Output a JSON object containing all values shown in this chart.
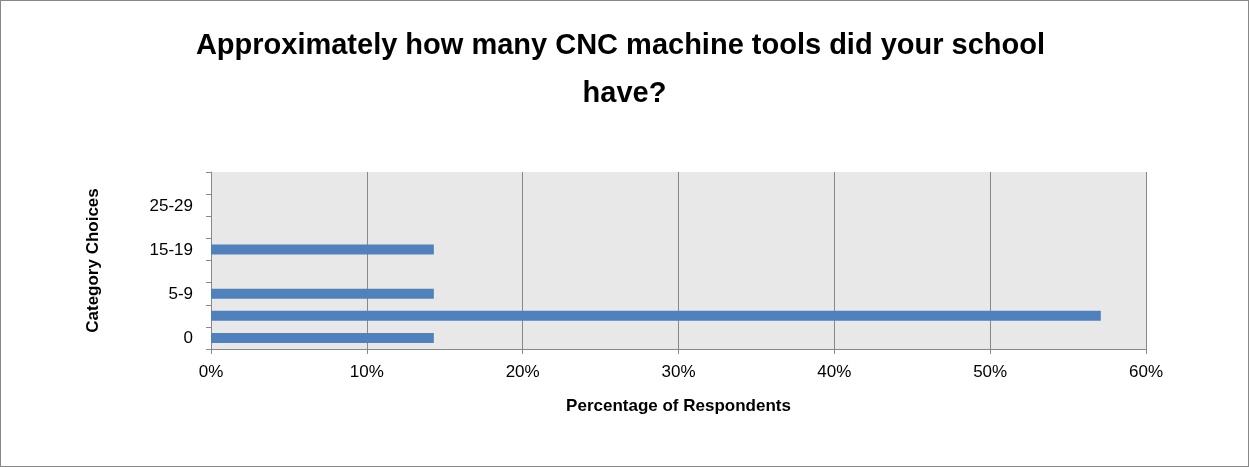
{
  "chart_data": {
    "type": "bar",
    "orientation": "horizontal",
    "title": "Approximately how many CNC machine tools did your school have?",
    "xlabel": "Percentage of Respondents",
    "ylabel": "Category Choices",
    "categories": [
      null,
      "25-29",
      null,
      "15-19",
      null,
      "5-9",
      null,
      "0"
    ],
    "values": [
      0,
      0,
      0,
      14.3,
      0,
      14.3,
      57.1,
      14.3
    ],
    "color": "#4f81bd",
    "xlim": [
      0,
      60
    ],
    "xticks": [
      {
        "value": 0,
        "label": "0%"
      },
      {
        "value": 10,
        "label": "10%"
      },
      {
        "value": 20,
        "label": "20%"
      },
      {
        "value": 30,
        "label": "30%"
      },
      {
        "value": 40,
        "label": "40%"
      },
      {
        "value": 50,
        "label": "50%"
      },
      {
        "value": 60,
        "label": "60%"
      }
    ],
    "grid": "x"
  }
}
